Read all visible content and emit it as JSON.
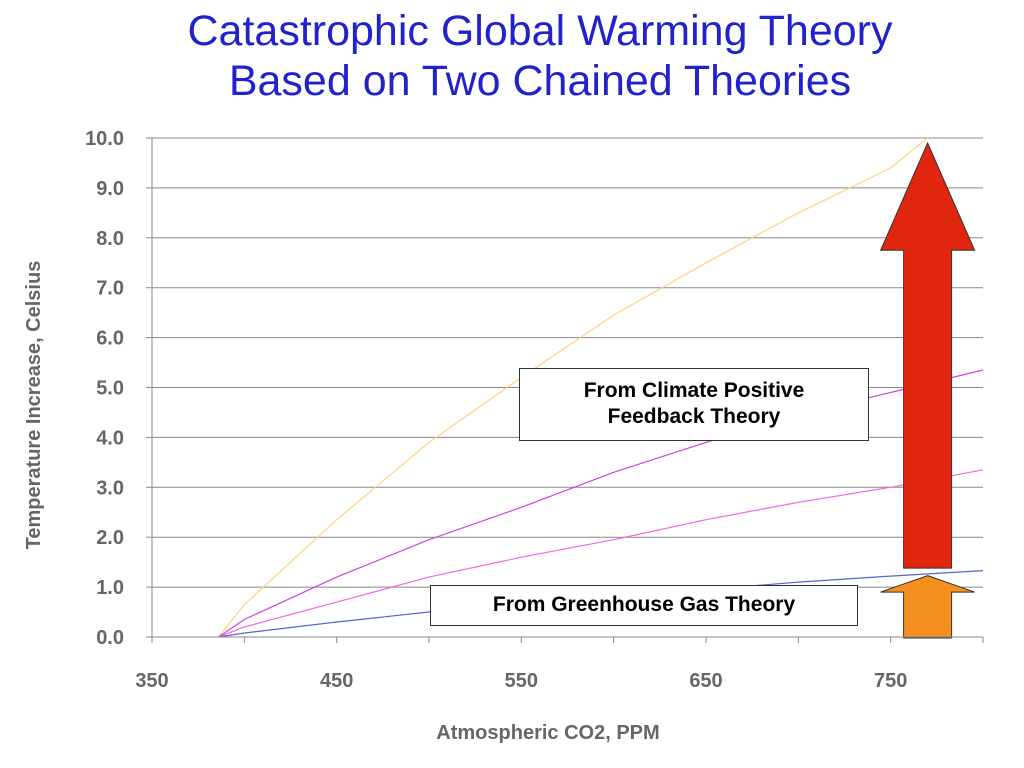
{
  "title_lines": [
    "Catastrophic Global Warming Theory",
    "Based on Two Chained Theories"
  ],
  "annotations": {
    "positive_feedback": [
      "From Climate Positive",
      "Feedback Theory"
    ],
    "greenhouse": "From Greenhouse Gas Theory"
  },
  "colors": {
    "title": "#2222cc",
    "grid": "#888888",
    "red_arrow": "#e0260e",
    "orange_arrow": "#f5901e",
    "series": [
      "#ffd27a",
      "#cc44dd",
      "#ee66ee",
      "#5566cc"
    ]
  },
  "chart_data": {
    "type": "line",
    "title": "",
    "xlabel": "Atmospheric CO2, PPM",
    "ylabel": "Temperature Increase, Celsius",
    "xlim": [
      350,
      800
    ],
    "ylim": [
      0,
      10
    ],
    "xticks": [
      "350",
      "450",
      "550",
      "650",
      "750"
    ],
    "yticks": [
      "0.0",
      "1.0",
      "2.0",
      "3.0",
      "4.0",
      "5.0",
      "6.0",
      "7.0",
      "8.0",
      "9.0",
      "10.0"
    ],
    "grid": true,
    "series": [
      {
        "color": "#ffd27a",
        "x": [
          386,
          400,
          450,
          500,
          550,
          600,
          650,
          700,
          750,
          770
        ],
        "y": [
          0,
          0.65,
          2.35,
          3.9,
          5.2,
          6.45,
          7.5,
          8.5,
          9.4,
          10.0
        ]
      },
      {
        "color": "#cc44dd",
        "x": [
          386,
          400,
          450,
          500,
          550,
          600,
          650,
          700,
          750,
          800
        ],
        "y": [
          0,
          0.35,
          1.2,
          1.95,
          2.6,
          3.3,
          3.9,
          4.45,
          4.9,
          5.35
        ]
      },
      {
        "color": "#ee66ee",
        "x": [
          386,
          400,
          450,
          500,
          550,
          600,
          650,
          700,
          750,
          800
        ],
        "y": [
          0,
          0.2,
          0.7,
          1.2,
          1.6,
          1.95,
          2.35,
          2.7,
          3.0,
          3.35
        ]
      },
      {
        "color": "#5566cc",
        "x": [
          386,
          400,
          450,
          500,
          550,
          600,
          650,
          700,
          750,
          800
        ],
        "y": [
          0,
          0.08,
          0.3,
          0.5,
          0.65,
          0.82,
          0.95,
          1.1,
          1.22,
          1.33
        ]
      }
    ]
  }
}
